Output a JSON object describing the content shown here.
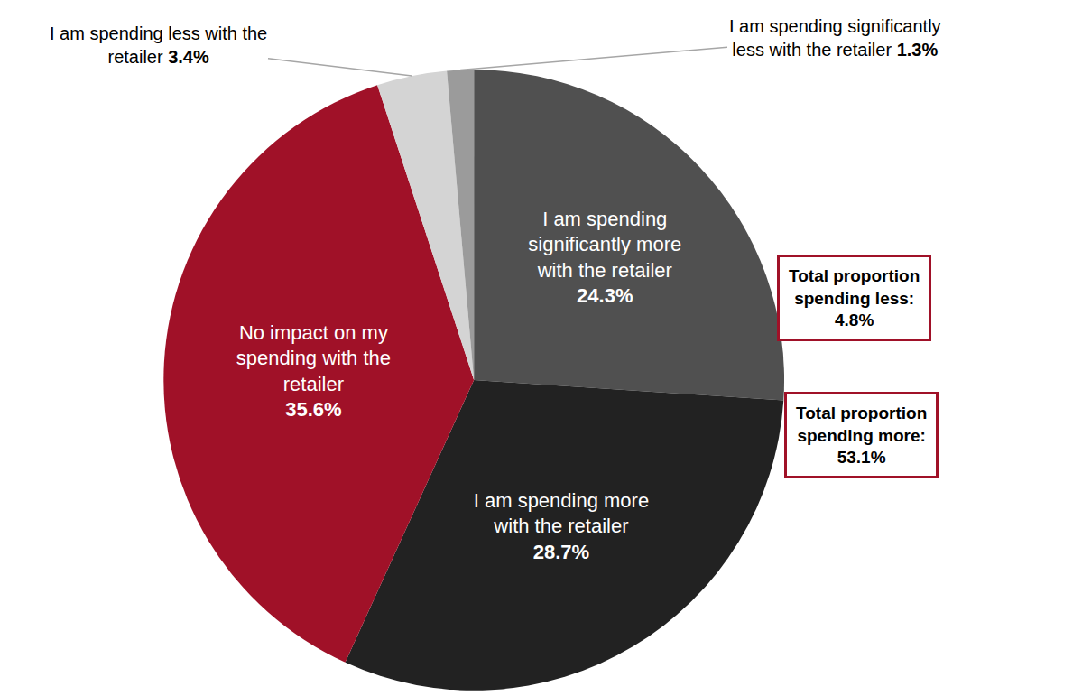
{
  "chart_data": {
    "type": "pie",
    "categories": [
      "I am spending significantly more with the retailer",
      "I am spending more with the retailer",
      "No impact on my spending with the retailer",
      "I am spending less with the retailer",
      "I am spending significantly less with the retailer"
    ],
    "values": [
      24.3,
      28.7,
      35.6,
      3.4,
      1.3
    ],
    "value_labels": [
      "24.3%",
      "28.7%",
      "35.6%",
      "3.4%",
      "1.3%"
    ],
    "colors": [
      "#505050",
      "#222222",
      "#a01128",
      "#d4d4d4",
      "#9b9b9b"
    ],
    "data_labels": true,
    "annotations": [
      "Total proportion spending less: 4.8%",
      "Total proportion spending more: 53.1%"
    ]
  }
}
